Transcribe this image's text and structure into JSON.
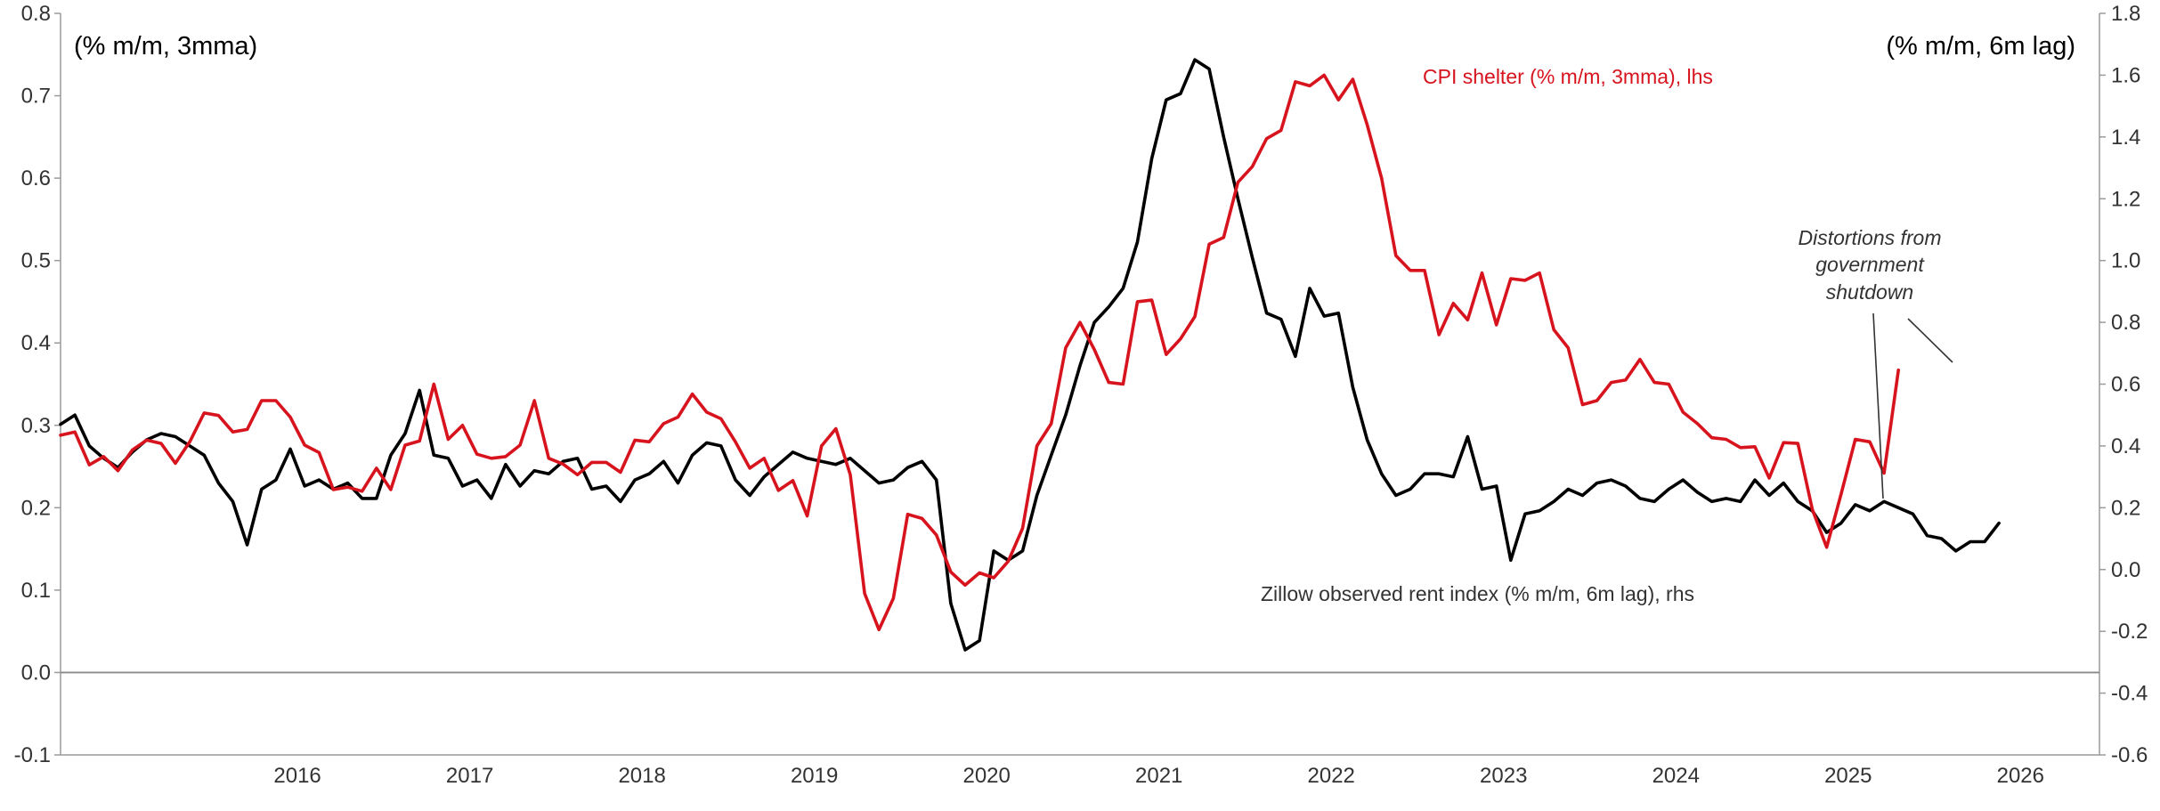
{
  "chart_data": {
    "type": "line",
    "left_axis": {
      "unit_label": "(% m/m, 3mma)",
      "ylim": [
        -0.1,
        0.8
      ],
      "ticks": [
        "-0.1",
        "0.0",
        "0.1",
        "0.2",
        "0.3",
        "0.4",
        "0.5",
        "0.6",
        "0.7",
        "0.8"
      ]
    },
    "right_axis": {
      "unit_label": "(% m/m, 6m lag)",
      "ylim": [
        -0.6,
        1.8
      ],
      "ticks": [
        "-0.6",
        "-0.4",
        "-0.2",
        "0.0",
        "0.2",
        "0.4",
        "0.6",
        "0.8",
        "1.0",
        "1.2",
        "1.4",
        "1.6",
        "1.8"
      ]
    },
    "x_axis": {
      "start": "2015-02",
      "end": "2026-12",
      "ticks": [
        "2016",
        "2017",
        "2018",
        "2019",
        "2020",
        "2021",
        "2022",
        "2023",
        "2024",
        "2025",
        "2026"
      ]
    },
    "series": [
      {
        "name": "CPI shelter (% m/m, 3mma), lhs",
        "axis": "left",
        "color": "#d7141e",
        "start": "2015-02",
        "values": [
          0.288,
          0.292,
          0.252,
          0.262,
          0.245,
          0.27,
          0.282,
          0.278,
          0.254,
          0.28,
          0.315,
          0.312,
          0.292,
          0.295,
          0.33,
          0.33,
          0.31,
          0.276,
          0.267,
          0.222,
          0.225,
          0.22,
          0.248,
          0.222,
          0.276,
          0.281,
          0.35,
          0.283,
          0.3,
          0.265,
          0.26,
          0.262,
          0.276,
          0.33,
          0.26,
          0.253,
          0.24,
          0.255,
          0.255,
          0.243,
          0.282,
          0.28,
          0.302,
          0.31,
          0.338,
          0.316,
          0.308,
          0.28,
          0.248,
          0.26,
          0.221,
          0.233,
          0.19,
          0.275,
          0.296,
          0.24,
          0.096,
          0.052,
          0.09,
          0.192,
          0.187,
          0.167,
          0.122,
          0.106,
          0.121,
          0.115,
          0.135,
          0.175,
          0.275,
          0.302,
          0.394,
          0.425,
          0.392,
          0.352,
          0.35,
          0.45,
          0.452,
          0.386,
          0.405,
          0.432,
          0.52,
          0.528,
          0.595,
          0.614,
          0.648,
          0.658,
          0.717,
          0.712,
          0.725,
          0.695,
          0.72,
          0.665,
          0.6,
          0.506,
          0.488,
          0.488,
          0.41,
          0.448,
          0.428,
          0.485,
          0.422,
          0.478,
          0.476,
          0.485,
          0.416,
          0.394,
          0.325,
          0.33,
          0.352,
          0.355,
          0.38,
          0.352,
          0.35,
          0.316,
          0.302,
          0.285,
          0.283,
          0.273,
          0.274,
          0.236,
          0.279,
          0.278,
          0.198,
          0.152,
          0.216,
          0.283,
          0.28,
          0.242,
          0.367
        ]
      },
      {
        "name": "Zillow observed rent index (% m/m, 6m lag), rhs",
        "axis": "right",
        "color": "#000000",
        "start": "2015-02",
        "values": [
          0.47,
          0.5,
          0.4,
          0.36,
          0.33,
          0.38,
          0.42,
          0.44,
          0.43,
          0.4,
          0.37,
          0.28,
          0.22,
          0.08,
          0.26,
          0.29,
          0.39,
          0.27,
          0.29,
          0.26,
          0.28,
          0.23,
          0.23,
          0.37,
          0.44,
          0.58,
          0.37,
          0.36,
          0.27,
          0.29,
          0.23,
          0.34,
          0.27,
          0.32,
          0.31,
          0.35,
          0.36,
          0.26,
          0.27,
          0.22,
          0.29,
          0.31,
          0.35,
          0.28,
          0.37,
          0.41,
          0.4,
          0.29,
          0.24,
          0.3,
          0.34,
          0.38,
          0.36,
          0.35,
          0.34,
          0.36,
          0.32,
          0.28,
          0.29,
          0.33,
          0.35,
          0.29,
          -0.11,
          -0.26,
          -0.23,
          0.06,
          0.03,
          0.06,
          0.24,
          0.37,
          0.5,
          0.66,
          0.8,
          0.85,
          0.91,
          1.06,
          1.33,
          1.52,
          1.54,
          1.65,
          1.62,
          1.4,
          1.2,
          1.01,
          0.83,
          0.81,
          0.69,
          0.91,
          0.82,
          0.83,
          0.59,
          0.42,
          0.31,
          0.24,
          0.26,
          0.31,
          0.31,
          0.3,
          0.43,
          0.26,
          0.27,
          0.03,
          0.18,
          0.19,
          0.22,
          0.26,
          0.24,
          0.28,
          0.29,
          0.27,
          0.23,
          0.22,
          0.26,
          0.29,
          0.25,
          0.22,
          0.23,
          0.22,
          0.29,
          0.24,
          0.28,
          0.22,
          0.19,
          0.12,
          0.15,
          0.21,
          0.19,
          0.22,
          0.2,
          0.18,
          0.11,
          0.1,
          0.06,
          0.09,
          0.09,
          0.15
        ]
      }
    ],
    "annotations": [
      {
        "text": "CPI shelter (% m/m, 3mma), lhs",
        "color": "#d7141e"
      },
      {
        "text": "Zillow observed rent index (% m/m, 6m lag), rhs",
        "color": "#333333"
      },
      {
        "text": [
          "Distortions from",
          "government",
          "shutdown"
        ],
        "style": "italic"
      }
    ],
    "grid": false
  }
}
